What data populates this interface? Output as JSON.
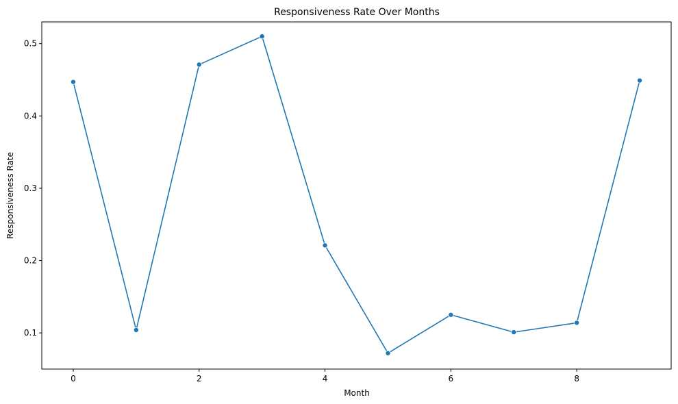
{
  "chart_data": {
    "type": "line",
    "title": "Responsiveness Rate Over Months",
    "xlabel": "Month",
    "ylabel": "Responsiveness Rate",
    "xlim": [
      -0.5,
      9.5
    ],
    "ylim": [
      0.05,
      0.53
    ],
    "x_ticks": [
      0,
      2,
      4,
      6,
      8
    ],
    "y_ticks": [
      0.1,
      0.2,
      0.3,
      0.4,
      0.5
    ],
    "y_tick_labels": [
      "0.1",
      "0.2",
      "0.3",
      "0.4",
      "0.5"
    ],
    "grid": false,
    "series": [
      {
        "x": [
          0,
          1,
          2,
          3,
          4,
          5,
          6,
          7,
          8,
          9
        ],
        "values": [
          0.447,
          0.104,
          0.471,
          0.51,
          0.221,
          0.072,
          0.125,
          0.101,
          0.114,
          0.449
        ],
        "color": "#1f77b4",
        "marker": "circle"
      }
    ]
  }
}
